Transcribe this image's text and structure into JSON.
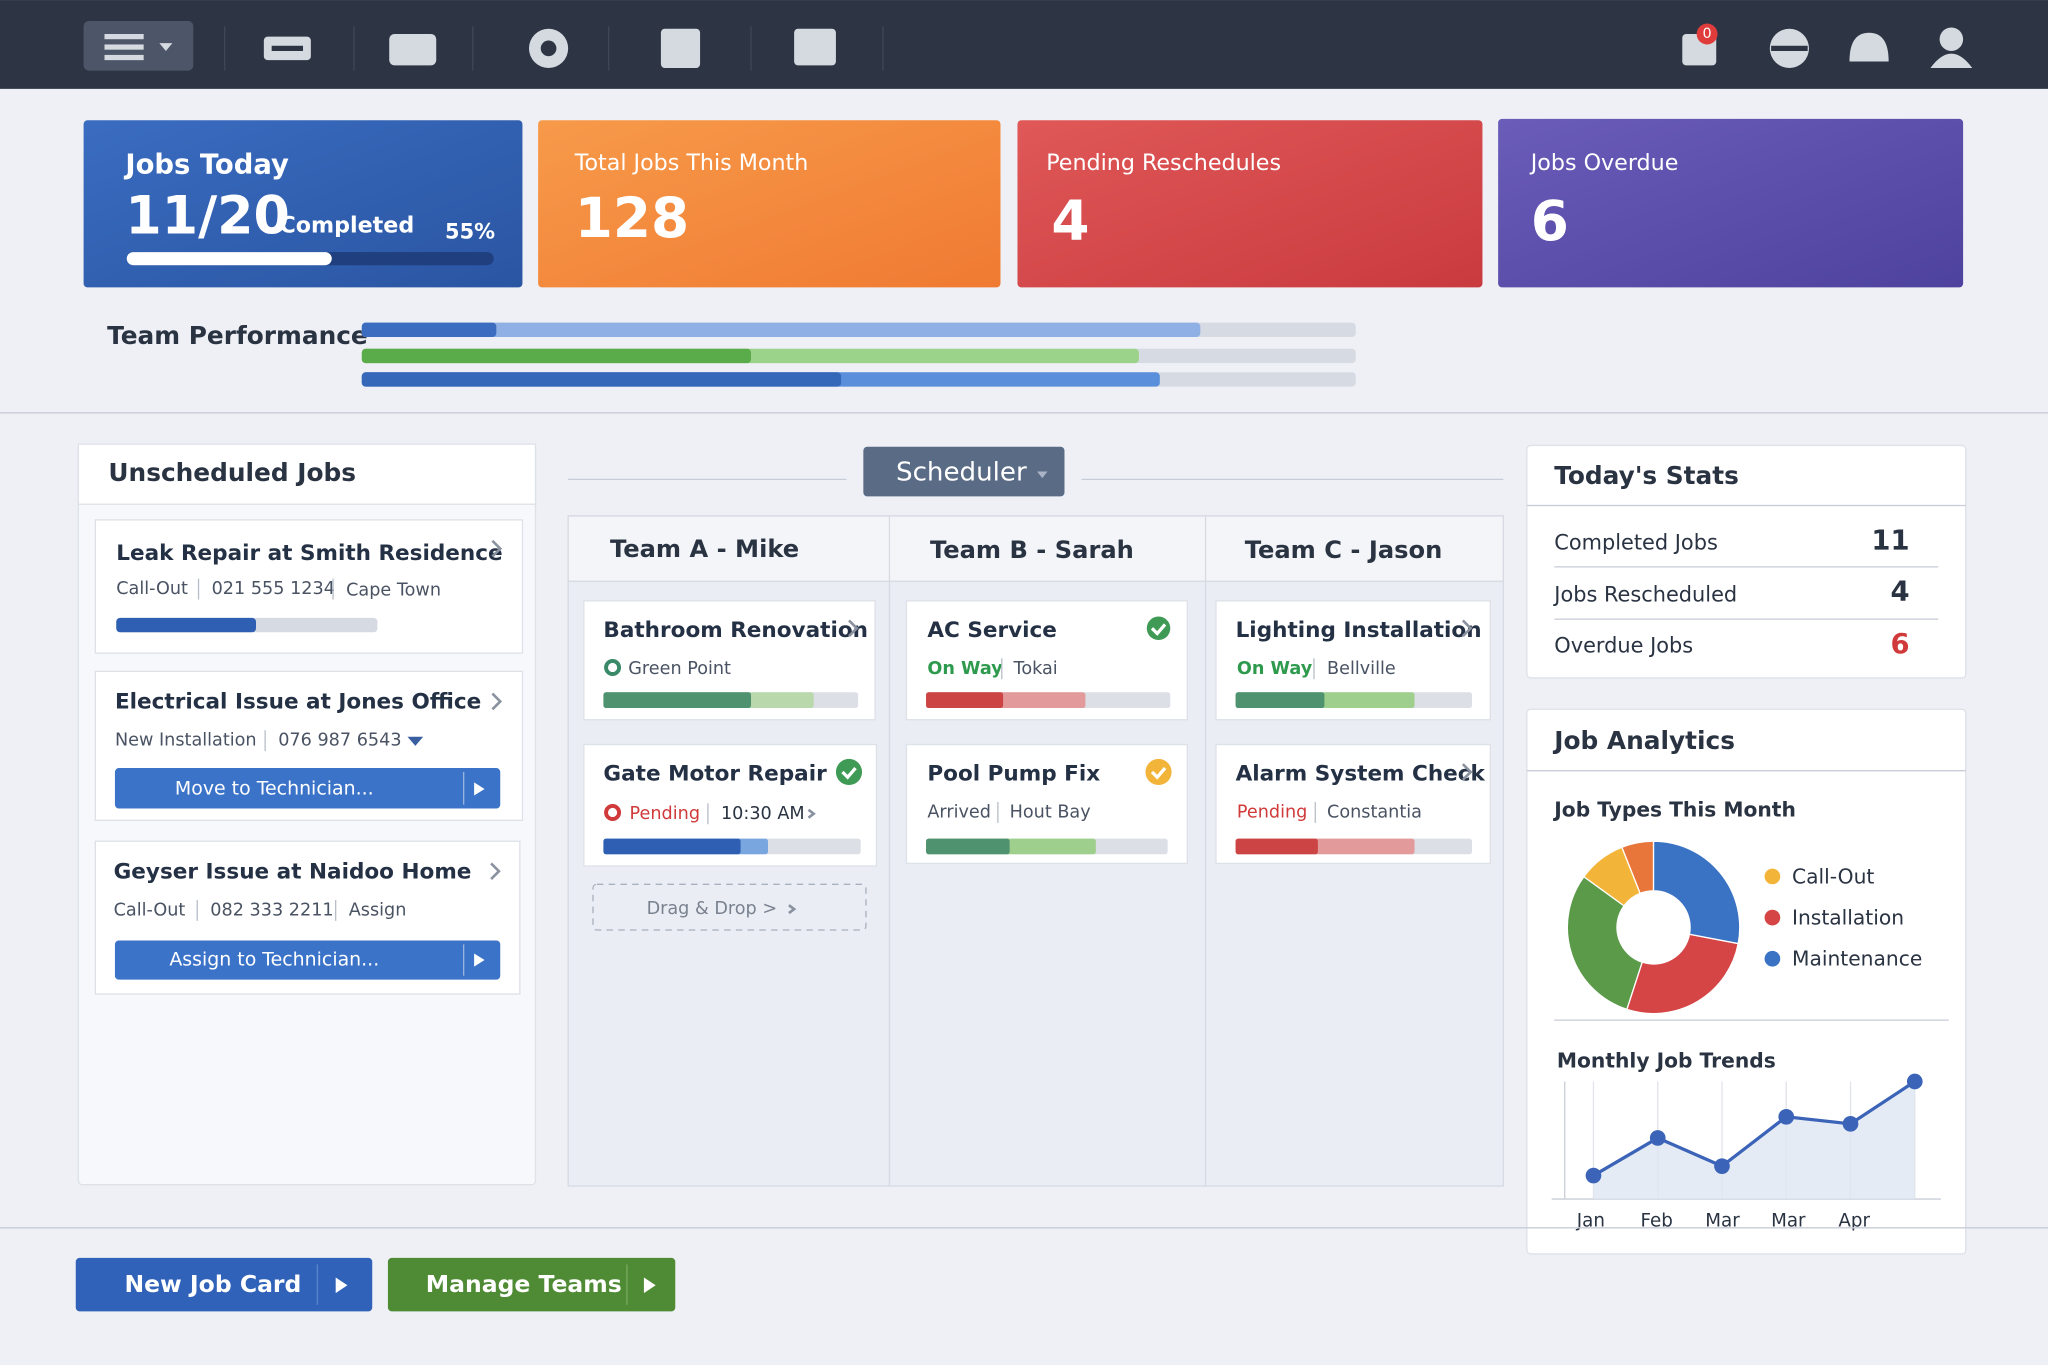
{
  "nav": {
    "badge": "0"
  },
  "kpis": [
    {
      "title": "Jobs Today",
      "value": "11/20",
      "suffix": "Completed",
      "percent": "55%"
    },
    {
      "title": "Total Jobs This Month",
      "value": 128
    },
    {
      "title": "Pending Reschedules",
      "value": 4
    },
    {
      "title": "Jobs Overdue",
      "value": 6
    }
  ],
  "team_performance": {
    "label": "Team Performance"
  },
  "unscheduled": {
    "title": "Unscheduled Jobs",
    "jobs": [
      {
        "title": "Leak Repair at Smith Residence",
        "type": "Call-Out",
        "phone": "021 555 1234",
        "area": "Cape Town"
      },
      {
        "title": "Electrical Issue at Jones Office",
        "type": "New Installation",
        "phone": "076 987 6543",
        "action": "Move to Technician..."
      },
      {
        "title": "Geyser Issue at Naidoo Home",
        "type": "Call-Out",
        "phone": "082 333 2211",
        "area": "Assign",
        "action": "Assign to Technician..."
      }
    ]
  },
  "scheduler": {
    "label": "Scheduler",
    "drop": "Drag & Drop >",
    "teams": [
      {
        "name": "Team A - Mike",
        "jobs": [
          {
            "title": "Bathroom Renovation",
            "location": "Green Point"
          },
          {
            "title": "Gate Motor Repair",
            "status": "Pending",
            "time": "10:30 AM"
          }
        ]
      },
      {
        "name": "Team B - Sarah",
        "jobs": [
          {
            "title": "AC Service",
            "status": "On Way",
            "location": "Tokai"
          },
          {
            "title": "Pool Pump Fix",
            "status": "Arrived",
            "location": "Hout Bay"
          }
        ]
      },
      {
        "name": "Team C - Jason",
        "jobs": [
          {
            "title": "Lighting Installation",
            "status": "On Way",
            "location": "Bellville"
          },
          {
            "title": "Alarm System Check",
            "status": "Pending",
            "location": "Constantia"
          }
        ]
      }
    ]
  },
  "stats": {
    "title": "Today's Stats",
    "rows": [
      {
        "label": "Completed Jobs",
        "value": 11
      },
      {
        "label": "Jobs Rescheduled",
        "value": 4
      },
      {
        "label": "Overdue Jobs",
        "value": 6
      }
    ]
  },
  "analytics": {
    "title": "Job Analytics"
  },
  "chart_data": [
    {
      "type": "pie",
      "title": "Job Types This Month",
      "categories": [
        null,
        "Call-Out",
        null,
        "Installation",
        "Maintenance"
      ],
      "values": [
        6,
        9,
        30,
        27,
        28
      ],
      "colors": [
        "#e8763a",
        "#f2b53a",
        "#5a9a48",
        "#d64545",
        "#3b73c4"
      ]
    },
    {
      "type": "line",
      "title": "Monthly Job Trends",
      "categories": [
        "Jan",
        "Feb",
        "Mar",
        "Mar",
        "Apr",
        null
      ],
      "values": [
        20,
        52,
        28,
        70,
        64,
        100
      ],
      "color": "#3b63b8",
      "ylim": [
        0,
        100
      ],
      "grid": true
    }
  ],
  "buttons": [
    "New Job Card",
    "Manage Teams"
  ]
}
